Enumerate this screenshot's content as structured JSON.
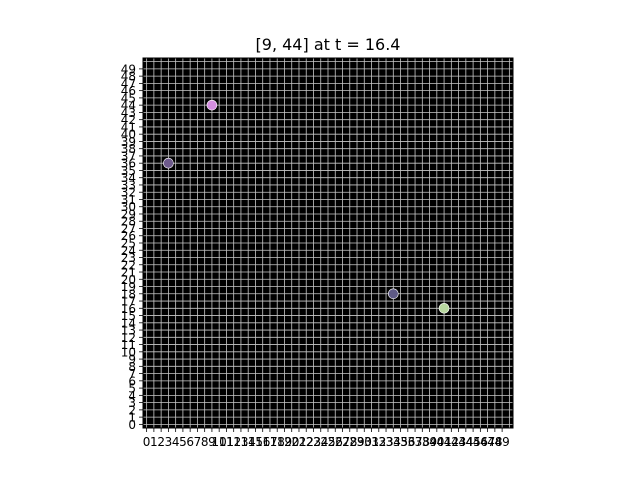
{
  "chart_data": {
    "type": "scatter",
    "title": "[9, 44] at t = 16.4",
    "xlabel": "",
    "ylabel": "",
    "xlim": [
      0,
      50
    ],
    "ylim": [
      0,
      50
    ],
    "grid": true,
    "background_color": "#000000",
    "grid_color": "#c8c8c8",
    "xticks": [
      0,
      1,
      2,
      3,
      4,
      5,
      6,
      7,
      8,
      9,
      10,
      11,
      12,
      13,
      14,
      15,
      16,
      17,
      18,
      19,
      20,
      21,
      22,
      23,
      24,
      25,
      26,
      27,
      28,
      29,
      30,
      31,
      32,
      33,
      34,
      35,
      36,
      37,
      38,
      39,
      40,
      41,
      42,
      43,
      44,
      45,
      46,
      47,
      48,
      49
    ],
    "yticks": [
      0,
      1,
      2,
      3,
      4,
      5,
      6,
      7,
      8,
      9,
      10,
      11,
      12,
      13,
      14,
      15,
      16,
      17,
      18,
      19,
      20,
      21,
      22,
      23,
      24,
      25,
      26,
      27,
      28,
      29,
      30,
      31,
      32,
      33,
      34,
      35,
      36,
      37,
      38,
      39,
      40,
      41,
      42,
      43,
      44,
      45,
      46,
      47,
      48,
      49
    ],
    "points": [
      {
        "x": 9,
        "y": 44,
        "color": "#d48ee0"
      },
      {
        "x": 3,
        "y": 36,
        "color": "#6e5a8c"
      },
      {
        "x": 34,
        "y": 18,
        "color": "#5e5a86"
      },
      {
        "x": 41,
        "y": 16,
        "color": "#b8d8a0"
      }
    ]
  }
}
